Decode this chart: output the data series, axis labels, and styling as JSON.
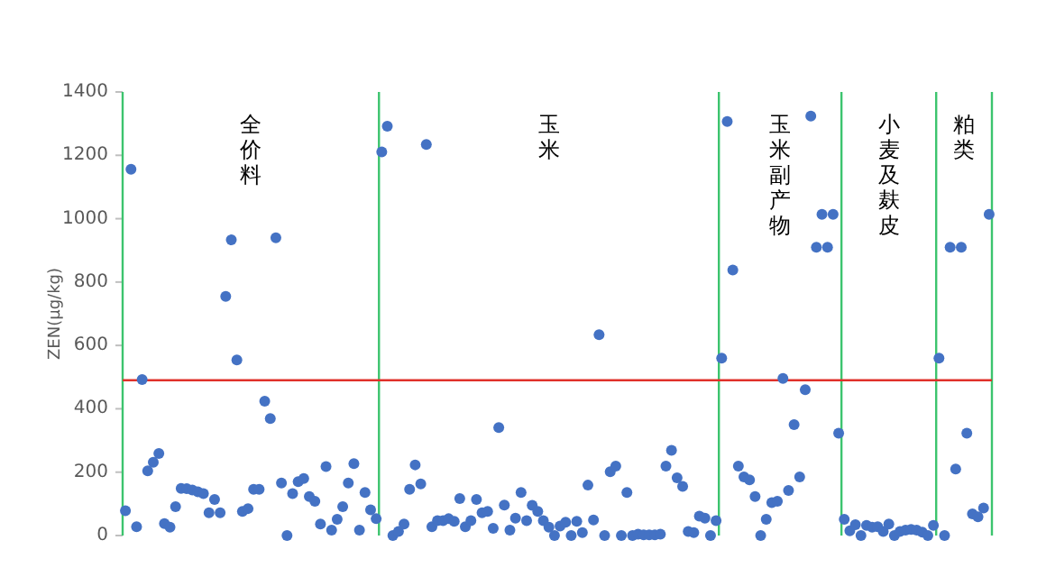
{
  "chart_data": {
    "type": "scatter",
    "ylabel": "ZEN(μg/kg)",
    "ylim": [
      0,
      1400
    ],
    "yticks": [
      0,
      200,
      400,
      600,
      800,
      1000,
      1200,
      1400
    ],
    "tick_labels": "y",
    "grid": false,
    "marker": "circle",
    "categories": [
      null,
      null,
      null,
      null,
      null,
      null,
      null,
      null,
      null,
      null,
      null,
      null,
      null,
      null,
      null,
      null,
      null,
      null,
      null,
      null,
      null,
      null,
      null,
      null,
      null,
      null,
      null,
      null,
      null,
      null,
      null,
      null,
      null,
      null,
      null,
      null,
      null,
      null,
      null,
      null,
      null,
      null,
      null,
      null,
      null,
      null,
      null,
      null,
      null,
      null,
      null,
      null,
      null,
      null,
      null,
      null,
      null,
      null,
      null,
      null,
      null,
      null,
      null,
      null,
      null,
      null,
      null,
      null,
      null,
      null,
      null,
      null,
      null,
      null,
      null,
      null,
      null,
      null,
      null,
      null,
      null,
      null,
      null,
      null,
      null,
      null,
      null,
      null,
      null,
      null,
      null,
      null,
      null,
      null,
      null,
      null,
      null,
      null,
      null,
      null,
      null,
      null,
      null,
      null,
      null,
      null,
      null,
      null,
      null,
      null,
      null,
      null,
      null,
      null,
      null,
      null,
      null,
      null,
      null,
      null,
      null,
      null,
      null,
      null,
      null,
      null,
      null,
      null,
      null,
      null,
      null,
      null,
      null,
      null,
      null,
      null,
      null,
      null,
      null,
      null,
      null,
      null,
      null,
      null,
      null,
      null,
      null,
      null,
      null,
      null,
      null,
      null,
      null,
      null,
      null,
      null
    ],
    "series": [
      {
        "color": "#4472c4",
        "values": [
          78,
          1156,
          28,
          492,
          204,
          231,
          259,
          38,
          26,
          91,
          149,
          148,
          144,
          138,
          132,
          72,
          114,
          72,
          755,
          933,
          554,
          76,
          85,
          146,
          146,
          424,
          369,
          940,
          166,
          0,
          132,
          170,
          180,
          123,
          108,
          36,
          218,
          17,
          51,
          91,
          166,
          227,
          17,
          136,
          81,
          53,
          1211,
          1292,
          0,
          13,
          36,
          146,
          223,
          163,
          1234,
          28,
          47,
          47,
          53,
          45,
          117,
          28,
          47,
          114,
          72,
          76,
          23,
          341,
          96,
          17,
          55,
          136,
          47,
          95,
          76,
          47,
          26,
          0,
          30,
          42,
          0,
          45,
          9,
          159,
          49,
          634,
          0,
          201,
          219,
          0,
          136,
          0,
          4,
          2,
          2,
          2,
          4,
          219,
          269,
          182,
          155,
          13,
          9,
          61,
          55,
          0,
          47,
          560,
          1307,
          838,
          219,
          185,
          176,
          123,
          0,
          51,
          104,
          108,
          496,
          142,
          350,
          185,
          460,
          1324,
          910,
          1014,
          910,
          1014,
          323,
          51,
          15,
          34,
          0,
          32,
          26,
          28,
          13,
          36,
          0,
          13,
          17,
          19,
          17,
          11,
          0,
          32,
          560,
          0,
          910,
          210,
          910,
          323,
          68,
          59,
          87,
          1014
        ]
      }
    ],
    "ref_lines": [
      {
        "axis": "y",
        "value": 490,
        "color": "#e0302a"
      }
    ],
    "annotations": [
      "全价料",
      "玉米",
      "玉米副产物",
      "小麦及麸皮",
      "粕类"
    ]
  }
}
